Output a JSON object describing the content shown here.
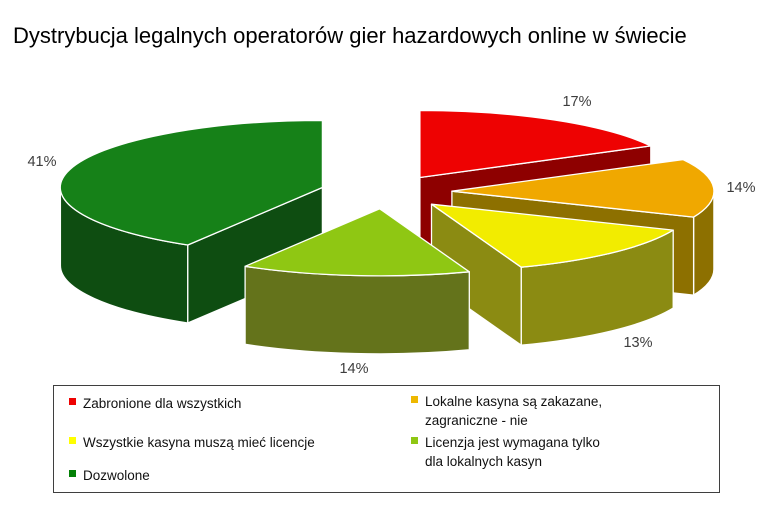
{
  "title": "Dystrybucja legalnych operatorów gier hazardowych online w świecie",
  "chart_data": {
    "type": "pie",
    "is_3d": true,
    "exploded": true,
    "title": "Dystrybucja legalnych operatorów gier hazardowych online w świecie",
    "unit": "%",
    "start_angle_deg_from_north": 0,
    "direction": "clockwise",
    "legend_position": "bottom",
    "slices": [
      {
        "label": "Zabronione dla wszystkich",
        "value": 17,
        "pct_label": "17%",
        "color": "#ee0202",
        "side_color": "#8e0000"
      },
      {
        "label": "Lokalne kasyna są zakazane, zagraniczne - nie",
        "value": 14,
        "pct_label": "14%",
        "color": "#f0a800",
        "side_color": "#8d7000"
      },
      {
        "label": "Wszystkie kasyna muszą mieć licencje",
        "value": 13,
        "pct_label": "13%",
        "color": "#f2ec00",
        "side_color": "#8b8b12"
      },
      {
        "label": "Licenzja jest wymagana tylko dla lokalnych kasyn",
        "value": 14,
        "pct_label": "14%",
        "color": "#8fc713",
        "side_color": "#64731b"
      },
      {
        "label": "Dozwolone",
        "value": 41,
        "pct_label": "41%",
        "color": "#168118",
        "side_color": "#0e4d11"
      }
    ]
  },
  "legend": {
    "columns": [
      {
        "items": [
          {
            "marker_color": "#ee0202",
            "lines": [
              "Zabronione dla wszystkich"
            ]
          },
          {
            "marker_color": "#ffff00",
            "lines": [
              "Wszystkie kasyna muszą mieć licencje"
            ]
          },
          {
            "marker_color": "#038006",
            "lines": [
              "Dozwolone"
            ]
          }
        ]
      },
      {
        "items": [
          {
            "marker_color": "#eeb800",
            "lines": [
              "Lokalne kasyna są zakazane,",
              "zagraniczne - nie"
            ]
          },
          {
            "marker_color": "#8fc713",
            "lines": [
              "Licenzja jest wymagana tylko",
              "dla lokalnych kasyn"
            ]
          }
        ]
      }
    ]
  }
}
